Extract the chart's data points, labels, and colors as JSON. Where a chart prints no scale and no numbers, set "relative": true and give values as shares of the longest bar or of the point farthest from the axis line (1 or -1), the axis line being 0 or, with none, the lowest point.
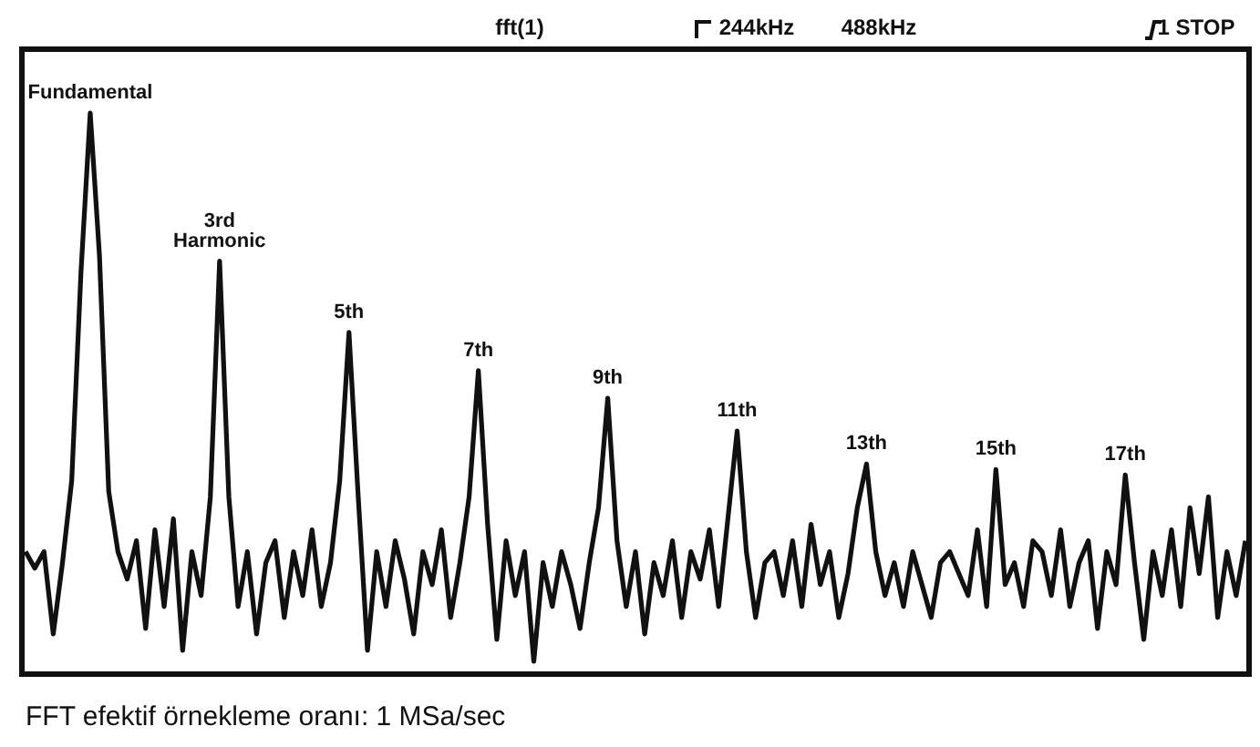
{
  "chart_data": {
    "type": "line",
    "relative": true,
    "tick_labels": false,
    "marker": "none",
    "line_style": "solid",
    "categories": [
      null,
      null,
      null,
      null,
      null,
      null,
      null,
      null,
      null,
      null,
      null,
      null,
      null,
      null,
      null,
      null,
      null,
      null,
      null,
      null,
      null,
      null,
      null,
      null,
      null,
      null,
      null,
      null,
      null,
      null,
      null,
      null,
      null,
      null,
      null,
      null,
      null,
      null,
      null,
      null,
      null,
      null,
      null,
      null,
      null,
      null,
      null,
      null,
      null,
      null,
      null,
      null,
      null,
      null,
      null,
      null,
      null,
      null,
      null,
      null,
      null,
      null,
      null,
      null,
      null,
      null,
      null,
      null,
      null,
      null,
      null,
      null,
      null,
      null,
      null,
      null,
      null,
      null,
      null,
      null,
      null,
      null,
      null,
      null,
      null,
      null,
      null,
      null,
      null,
      null,
      null,
      null,
      null,
      null,
      null,
      null,
      null,
      null,
      null,
      null,
      null,
      null,
      null,
      null,
      null,
      null,
      null,
      null,
      null,
      null,
      null,
      null,
      null,
      null,
      null,
      null,
      null,
      null,
      null,
      null,
      null,
      null,
      null,
      null,
      null,
      null,
      null,
      null,
      null,
      null,
      null,
      null,
      null
    ],
    "series": [
      {
        "color": "#111111",
        "values": [
          0.2,
          0.17,
          0.2,
          0.05,
          0.18,
          0.33,
          0.71,
          1.0,
          0.74,
          0.31,
          0.2,
          0.15,
          0.22,
          0.06,
          0.24,
          0.1,
          0.26,
          0.02,
          0.2,
          0.12,
          0.3,
          0.73,
          0.3,
          0.1,
          0.2,
          0.05,
          0.18,
          0.22,
          0.08,
          0.2,
          0.12,
          0.24,
          0.1,
          0.18,
          0.33,
          0.6,
          0.3,
          0.02,
          0.2,
          0.1,
          0.22,
          0.15,
          0.05,
          0.2,
          0.14,
          0.24,
          0.08,
          0.18,
          0.3,
          0.53,
          0.25,
          0.04,
          0.22,
          0.12,
          0.2,
          0.0,
          0.18,
          0.1,
          0.2,
          0.14,
          0.06,
          0.18,
          0.28,
          0.48,
          0.22,
          0.1,
          0.2,
          0.05,
          0.18,
          0.12,
          0.22,
          0.08,
          0.2,
          0.15,
          0.24,
          0.1,
          0.26,
          0.42,
          0.2,
          0.08,
          0.18,
          0.2,
          0.12,
          0.22,
          0.1,
          0.25,
          0.14,
          0.2,
          0.08,
          0.16,
          0.28,
          0.36,
          0.2,
          0.12,
          0.18,
          0.1,
          0.2,
          0.14,
          0.08,
          0.18,
          0.2,
          0.16,
          0.12,
          0.24,
          0.1,
          0.35,
          0.14,
          0.18,
          0.1,
          0.22,
          0.2,
          0.12,
          0.24,
          0.1,
          0.18,
          0.22,
          0.06,
          0.2,
          0.14,
          0.34,
          0.18,
          0.04,
          0.2,
          0.12,
          0.24,
          0.1,
          0.28,
          0.16,
          0.3,
          0.08,
          0.2,
          0.12,
          0.22
        ]
      }
    ],
    "annotations": [
      "fft(1)",
      "244kHz",
      "488kHz",
      "1 STOP",
      {
        "text": "Fundamental",
        "y": 1.0
      },
      {
        "text": "3rd\nHarmonic",
        "y": 0.73
      },
      {
        "text": "5th",
        "y": 0.6
      },
      {
        "text": "7th",
        "y": 0.53
      },
      {
        "text": "9th",
        "y": 0.48
      },
      {
        "text": "11th",
        "y": 0.42
      },
      {
        "text": "13th",
        "y": 0.36
      },
      {
        "text": "15th",
        "y": 0.35
      },
      {
        "text": "17th",
        "y": 0.34
      },
      "FFT efektif örnekleme oranı: 1 MSa/sec"
    ]
  }
}
